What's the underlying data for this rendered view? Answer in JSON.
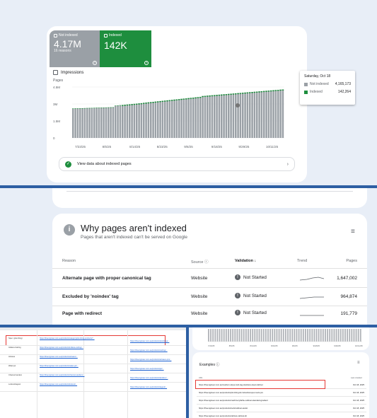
{
  "summary": {
    "not_indexed": {
      "label": "Not indexed",
      "value": "4.17M",
      "sub": "16 reasons"
    },
    "indexed": {
      "label": "Indexed",
      "value": "142K"
    },
    "impressions_label": "Impressions",
    "colors": {
      "not_indexed": "#9aa0a6",
      "indexed": "#1e8e3e"
    }
  },
  "chart_data": {
    "type": "bar",
    "ylabel": "Pages",
    "y_ticks": [
      "4.5M",
      "3M",
      "1.5M",
      "0"
    ],
    "x_ticks": [
      "7/23/25",
      "8/5/25",
      "8/14/25",
      "8/23/25",
      "9/6/25",
      "9/18/25",
      "9/29/25",
      "10/11/25"
    ],
    "ylim": [
      0,
      4500000
    ],
    "series": [
      {
        "name": "Not indexed",
        "color": "#9aa0a6"
      },
      {
        "name": "Indexed",
        "color": "#1e8e3e"
      }
    ],
    "total_approx_first": 2600000,
    "total_approx_last": 4300000
  },
  "tooltip": {
    "date": "Saturday, Oct 18",
    "rows": [
      {
        "label": "Not indexed",
        "value": "4,165,173",
        "color": "#9aa0a6"
      },
      {
        "label": "Indexed",
        "value": "142,264",
        "color": "#1e8e3e"
      }
    ]
  },
  "view_data": {
    "label": "View data about indexed pages"
  },
  "why": {
    "title": "Why pages aren't indexed",
    "subtitle": "Pages that aren't indexed can't be served on Google",
    "headers": {
      "reason": "Reason",
      "source": "Source",
      "validation": "Validation",
      "trend": "Trend",
      "pages": "Pages"
    },
    "rows": [
      {
        "reason": "Alternate page with proper canonical tag",
        "source": "Website",
        "validation": "Not Started",
        "pages": "1,647,002"
      },
      {
        "reason": "Excluded by 'noindex' tag",
        "source": "Website",
        "validation": "Not Started",
        "pages": "964,874"
      },
      {
        "reason": "Page with redirect",
        "source": "Website",
        "validation": "Not Started",
        "pages": "191,779"
      }
    ]
  },
  "sheet": {
    "rows": [
      {
        "label": "Spec. (plumbing)",
        "a": "https://theengineer.com.au/products/category/plumbing-products?...",
        "b": "https://theengineer.com.au/products/plumbing/..."
      },
      {
        "label": "Indiana Carting",
        "a": "https://theengineer.com.au/products/indiana-carting/...",
        "b": "https://theengineer.com.au/products/carting/..."
      },
      {
        "label": "Airwave",
        "a": "https://theengineer.com.au/products/airwave/...",
        "b": "https://theengineer.com.au/products/airwave-pro/..."
      },
      {
        "label": "Water jet",
        "a": "https://theengineer.com.au/products/water-jet/...",
        "b": "https://theengineer.com.au/products/jet/..."
      },
      {
        "label": "Channel tandem",
        "a": "https://theengineer.com.au/products/channel-tandem/...",
        "b": "https://theengineer.com.au/products/tandem/..."
      },
      {
        "label": "Lockout/tagout",
        "a": "https://theengineer.com.au/products/lockout/...",
        "b": "https://theengineer.com.au/products/tagout/..."
      }
    ]
  },
  "examples": {
    "title": "Examples",
    "headers": {
      "url": "URL",
      "last_crawled": "Last crawled"
    },
    "rows": [
      {
        "url": "https://theengineer.com.au/medium-slope-lock-tag-stainless-steel-cabinet",
        "date": "Oct 18, 2025"
      },
      {
        "url": "https://theengineer.com.au/products/plumbing-kit-industrial-spec-tools-pro",
        "date": "Oct 18, 2025"
      },
      {
        "url": "https://theengineer.com.au/products/machinery/lathe-cabinet-standard-gradient",
        "date": "Oct 18, 2025"
      },
      {
        "url": "https://theengineer.com.au/products/tools/cabinet-assist",
        "date": "Oct 18, 2025"
      },
      {
        "url": "https://theengineer.com.au/products/cabinet-cabinet-kit",
        "date": "Oct 18, 2025"
      }
    ]
  }
}
